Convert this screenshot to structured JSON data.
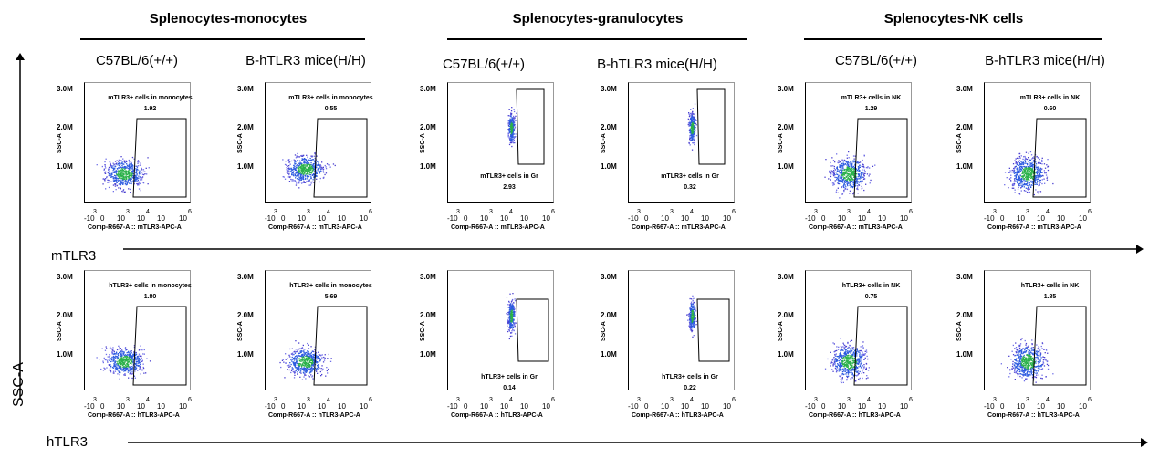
{
  "groups": [
    {
      "title": "Splenocytes-monocytes"
    },
    {
      "title": "Splenocytes-granulocytes"
    },
    {
      "title": "Splenocytes-NK cells"
    }
  ],
  "columns": [
    {
      "label": "C57BL/6(+/+)"
    },
    {
      "label": "B-hTLR3 mice(H/H)"
    },
    {
      "label": "C57BL/6(+/+)"
    },
    {
      "label": "B-hTLR3 mice(H/H)"
    },
    {
      "label": "C57BL/6(+/+)"
    },
    {
      "label": "B-hTLR3 mice(H/H)"
    }
  ],
  "axes": {
    "y": "SSC-A",
    "x_row1": "mTLR3",
    "x_row2": "hTLR3"
  },
  "plot_text": {
    "y_title": "SSC-A",
    "y_ticks": [
      "3.0M",
      "2.0M",
      "1.0M"
    ],
    "x_ticks": [
      "-10",
      "0",
      "10",
      "10",
      "10",
      "10"
    ],
    "x_exps": [
      "3",
      "3",
      "4",
      "6"
    ],
    "x_title_row1": "Comp-R667-A :: mTLR3-APC-A",
    "x_title_row2": "Comp-R667-A :: hTLR3-APC-A"
  },
  "panels": [
    {
      "row": 1,
      "col": 0,
      "gate": "mTLR3+ cells in monocytes",
      "value": "1.92",
      "type": "mono"
    },
    {
      "row": 1,
      "col": 1,
      "gate": "mTLR3+ cells in monocytes",
      "value": "0.55",
      "type": "mono"
    },
    {
      "row": 1,
      "col": 2,
      "gate": "mTLR3+ cells in Gr",
      "value": "2.93",
      "type": "gr"
    },
    {
      "row": 1,
      "col": 3,
      "gate": "mTLR3+ cells in Gr",
      "value": "0.32",
      "type": "gr"
    },
    {
      "row": 1,
      "col": 4,
      "gate": "mTLR3+ cells in NK",
      "value": "1.29",
      "type": "nk"
    },
    {
      "row": 1,
      "col": 5,
      "gate": "mTLR3+ cells in NK",
      "value": "0.60",
      "type": "nk"
    },
    {
      "row": 2,
      "col": 0,
      "gate": "hTLR3+ cells in monocytes",
      "value": "1.80",
      "type": "mono"
    },
    {
      "row": 2,
      "col": 1,
      "gate": "hTLR3+ cells in monocytes",
      "value": "5.69",
      "type": "mono"
    },
    {
      "row": 2,
      "col": 2,
      "gate": "hTLR3+ cells in Gr",
      "value": "0.14",
      "type": "gr"
    },
    {
      "row": 2,
      "col": 3,
      "gate": "hTLR3+ cells in Gr",
      "value": "0.22",
      "type": "gr"
    },
    {
      "row": 2,
      "col": 4,
      "gate": "hTLR3+ cells in NK",
      "value": "0.75",
      "type": "nk"
    },
    {
      "row": 2,
      "col": 5,
      "gate": "hTLR3+ cells in NK",
      "value": "1.85",
      "type": "nk"
    }
  ]
}
